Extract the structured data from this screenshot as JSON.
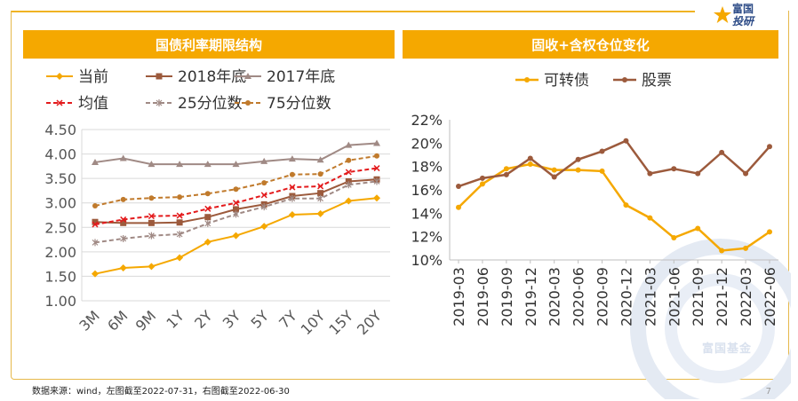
{
  "logo": {
    "line1": "富国",
    "line2": "投研"
  },
  "left_title": "国债利率期限结构",
  "right_title": "固收+含权仓位变化",
  "footnote": "数据来源：wind，左图截至2022-07-31，右图截至2022-06-30",
  "page_number": "7",
  "watermark": "富国基金",
  "colors": {
    "accent": "#f5a800",
    "border": "#e6b84a"
  },
  "chart_data": [
    {
      "type": "line",
      "title": "国债利率期限结构",
      "categories": [
        "3M",
        "6M",
        "9M",
        "1Y",
        "2Y",
        "3Y",
        "5Y",
        "7Y",
        "10Y",
        "15Y",
        "20Y"
      ],
      "ylim": [
        1.0,
        4.5
      ],
      "yticks": [
        "1.00",
        "1.50",
        "2.00",
        "2.50",
        "3.00",
        "3.50",
        "4.00",
        "4.50"
      ],
      "grid": true,
      "legend_position": "top",
      "series": [
        {
          "name": "当前",
          "color": "#f5a800",
          "dash": "",
          "marker": "diamond",
          "values": [
            1.55,
            1.67,
            1.7,
            1.88,
            2.2,
            2.33,
            2.52,
            2.76,
            2.78,
            3.04,
            3.1
          ]
        },
        {
          "name": "2018年底",
          "color": "#9c5a3c",
          "dash": "",
          "marker": "square",
          "values": [
            2.61,
            2.59,
            2.59,
            2.6,
            2.71,
            2.87,
            2.97,
            3.14,
            3.2,
            3.44,
            3.48
          ]
        },
        {
          "name": "2017年底",
          "color": "#a08a85",
          "dash": "",
          "marker": "triangle",
          "values": [
            3.83,
            3.91,
            3.79,
            3.79,
            3.79,
            3.79,
            3.85,
            3.9,
            3.88,
            4.18,
            4.22
          ]
        },
        {
          "name": "均值",
          "color": "#e31a1c",
          "dash": "5,3",
          "marker": "x",
          "values": [
            2.56,
            2.66,
            2.73,
            2.74,
            2.88,
            3.0,
            3.16,
            3.32,
            3.34,
            3.63,
            3.71
          ]
        },
        {
          "name": "25分位数",
          "color": "#a08a85",
          "dash": "5,3",
          "marker": "star",
          "values": [
            2.19,
            2.27,
            2.33,
            2.36,
            2.58,
            2.77,
            2.92,
            3.09,
            3.09,
            3.37,
            3.44
          ]
        },
        {
          "name": "75分位数",
          "color": "#c07a2c",
          "dash": "5,3",
          "marker": "circle",
          "values": [
            2.94,
            3.07,
            3.1,
            3.12,
            3.19,
            3.28,
            3.41,
            3.58,
            3.59,
            3.87,
            3.96
          ]
        }
      ]
    },
    {
      "type": "line",
      "title": "固收+含权仓位变化",
      "categories": [
        "2019-03",
        "2019-06",
        "2019-09",
        "2019-12",
        "2020-03",
        "2020-06",
        "2020-09",
        "2020-12",
        "2021-03",
        "2021-06",
        "2021-09",
        "2021-12",
        "2022-03",
        "2022-06"
      ],
      "ylim": [
        10,
        22
      ],
      "yticks": [
        "10%",
        "12%",
        "14%",
        "16%",
        "18%",
        "20%",
        "22%"
      ],
      "grid": true,
      "legend_position": "top",
      "series": [
        {
          "name": "可转债",
          "color": "#f5a800",
          "marker": "circle",
          "values": [
            14.5,
            16.5,
            17.8,
            18.2,
            17.7,
            17.7,
            17.6,
            14.7,
            13.6,
            11.9,
            12.7,
            10.8,
            11.0,
            12.4
          ]
        },
        {
          "name": "股票",
          "color": "#9c5a3c",
          "marker": "circle",
          "values": [
            16.3,
            17.0,
            17.3,
            18.7,
            17.1,
            18.6,
            19.3,
            20.2,
            17.4,
            17.8,
            17.4,
            19.2,
            17.4,
            19.7
          ]
        }
      ]
    }
  ]
}
